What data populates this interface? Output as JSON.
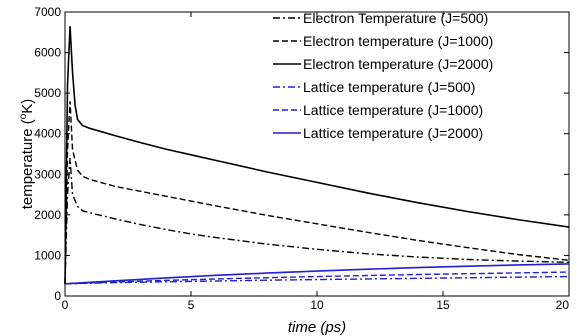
{
  "chart_data": {
    "type": "line",
    "xlabel": "time (ps)",
    "ylabel": "temperature (",
    "ylabel_sup": "o",
    "ylabel_tail": "K)",
    "xlim": [
      0,
      20
    ],
    "ylim": [
      0,
      7000
    ],
    "x_ticks": [
      "0",
      "5",
      "10",
      "15",
      "20"
    ],
    "y_ticks": [
      "0",
      "1000",
      "2000",
      "3000",
      "4000",
      "5000",
      "6000",
      "7000"
    ],
    "grid": false,
    "legend_position": "top-right",
    "series": [
      {
        "name": "Electron Temperature (J=500)",
        "color": "#000000",
        "dash": "dashdot",
        "x": [
          0,
          0.1,
          0.2,
          0.3,
          0.5,
          0.7,
          1,
          2,
          3,
          4,
          5,
          6,
          8,
          10,
          12,
          14,
          16,
          18,
          20
        ],
        "y": [
          300,
          2500,
          3400,
          2500,
          2200,
          2100,
          2050,
          1900,
          1760,
          1640,
          1530,
          1440,
          1280,
          1150,
          1040,
          960,
          900,
          860,
          830
        ]
      },
      {
        "name": "Electron temperature (J=1000)",
        "color": "#000000",
        "dash": "dashed",
        "x": [
          0,
          0.1,
          0.2,
          0.3,
          0.5,
          0.7,
          1,
          2,
          3,
          4,
          5,
          6,
          8,
          10,
          12,
          14,
          16,
          18,
          20
        ],
        "y": [
          300,
          3600,
          4800,
          3600,
          3100,
          2950,
          2870,
          2700,
          2580,
          2460,
          2340,
          2220,
          1990,
          1780,
          1570,
          1370,
          1190,
          1020,
          880
        ]
      },
      {
        "name": "Electron temperature (J=2000)",
        "color": "#000000",
        "dash": "solid",
        "x": [
          0,
          0.1,
          0.2,
          0.3,
          0.4,
          0.5,
          0.7,
          1,
          2,
          3,
          4,
          5,
          6,
          8,
          10,
          12,
          14,
          16,
          18,
          20
        ],
        "y": [
          300,
          5200,
          6650,
          5500,
          4700,
          4350,
          4200,
          4130,
          3950,
          3780,
          3620,
          3480,
          3340,
          3060,
          2800,
          2540,
          2300,
          2080,
          1880,
          1700
        ]
      },
      {
        "name": "Lattice temperature (J=500)",
        "color": "#1f1fd6",
        "dash": "dashdot",
        "x": [
          0,
          2,
          4,
          6,
          8,
          10,
          12,
          14,
          16,
          18,
          20
        ],
        "y": [
          300,
          330,
          350,
          370,
          390,
          405,
          420,
          435,
          450,
          465,
          480
        ]
      },
      {
        "name": "Lattice temperature (J=1000)",
        "color": "#1f1fd6",
        "dash": "dashed",
        "x": [
          0,
          2,
          4,
          6,
          8,
          10,
          12,
          14,
          16,
          18,
          20
        ],
        "y": [
          300,
          345,
          385,
          420,
          450,
          480,
          505,
          530,
          550,
          570,
          590
        ]
      },
      {
        "name": "Lattice temperature (J=2000)",
        "color": "#1f1fd6",
        "dash": "solid",
        "x": [
          0,
          2,
          4,
          6,
          8,
          10,
          12,
          14,
          16,
          18,
          20
        ],
        "y": [
          300,
          375,
          445,
          510,
          565,
          615,
          660,
          700,
          735,
          765,
          790
        ]
      }
    ]
  }
}
